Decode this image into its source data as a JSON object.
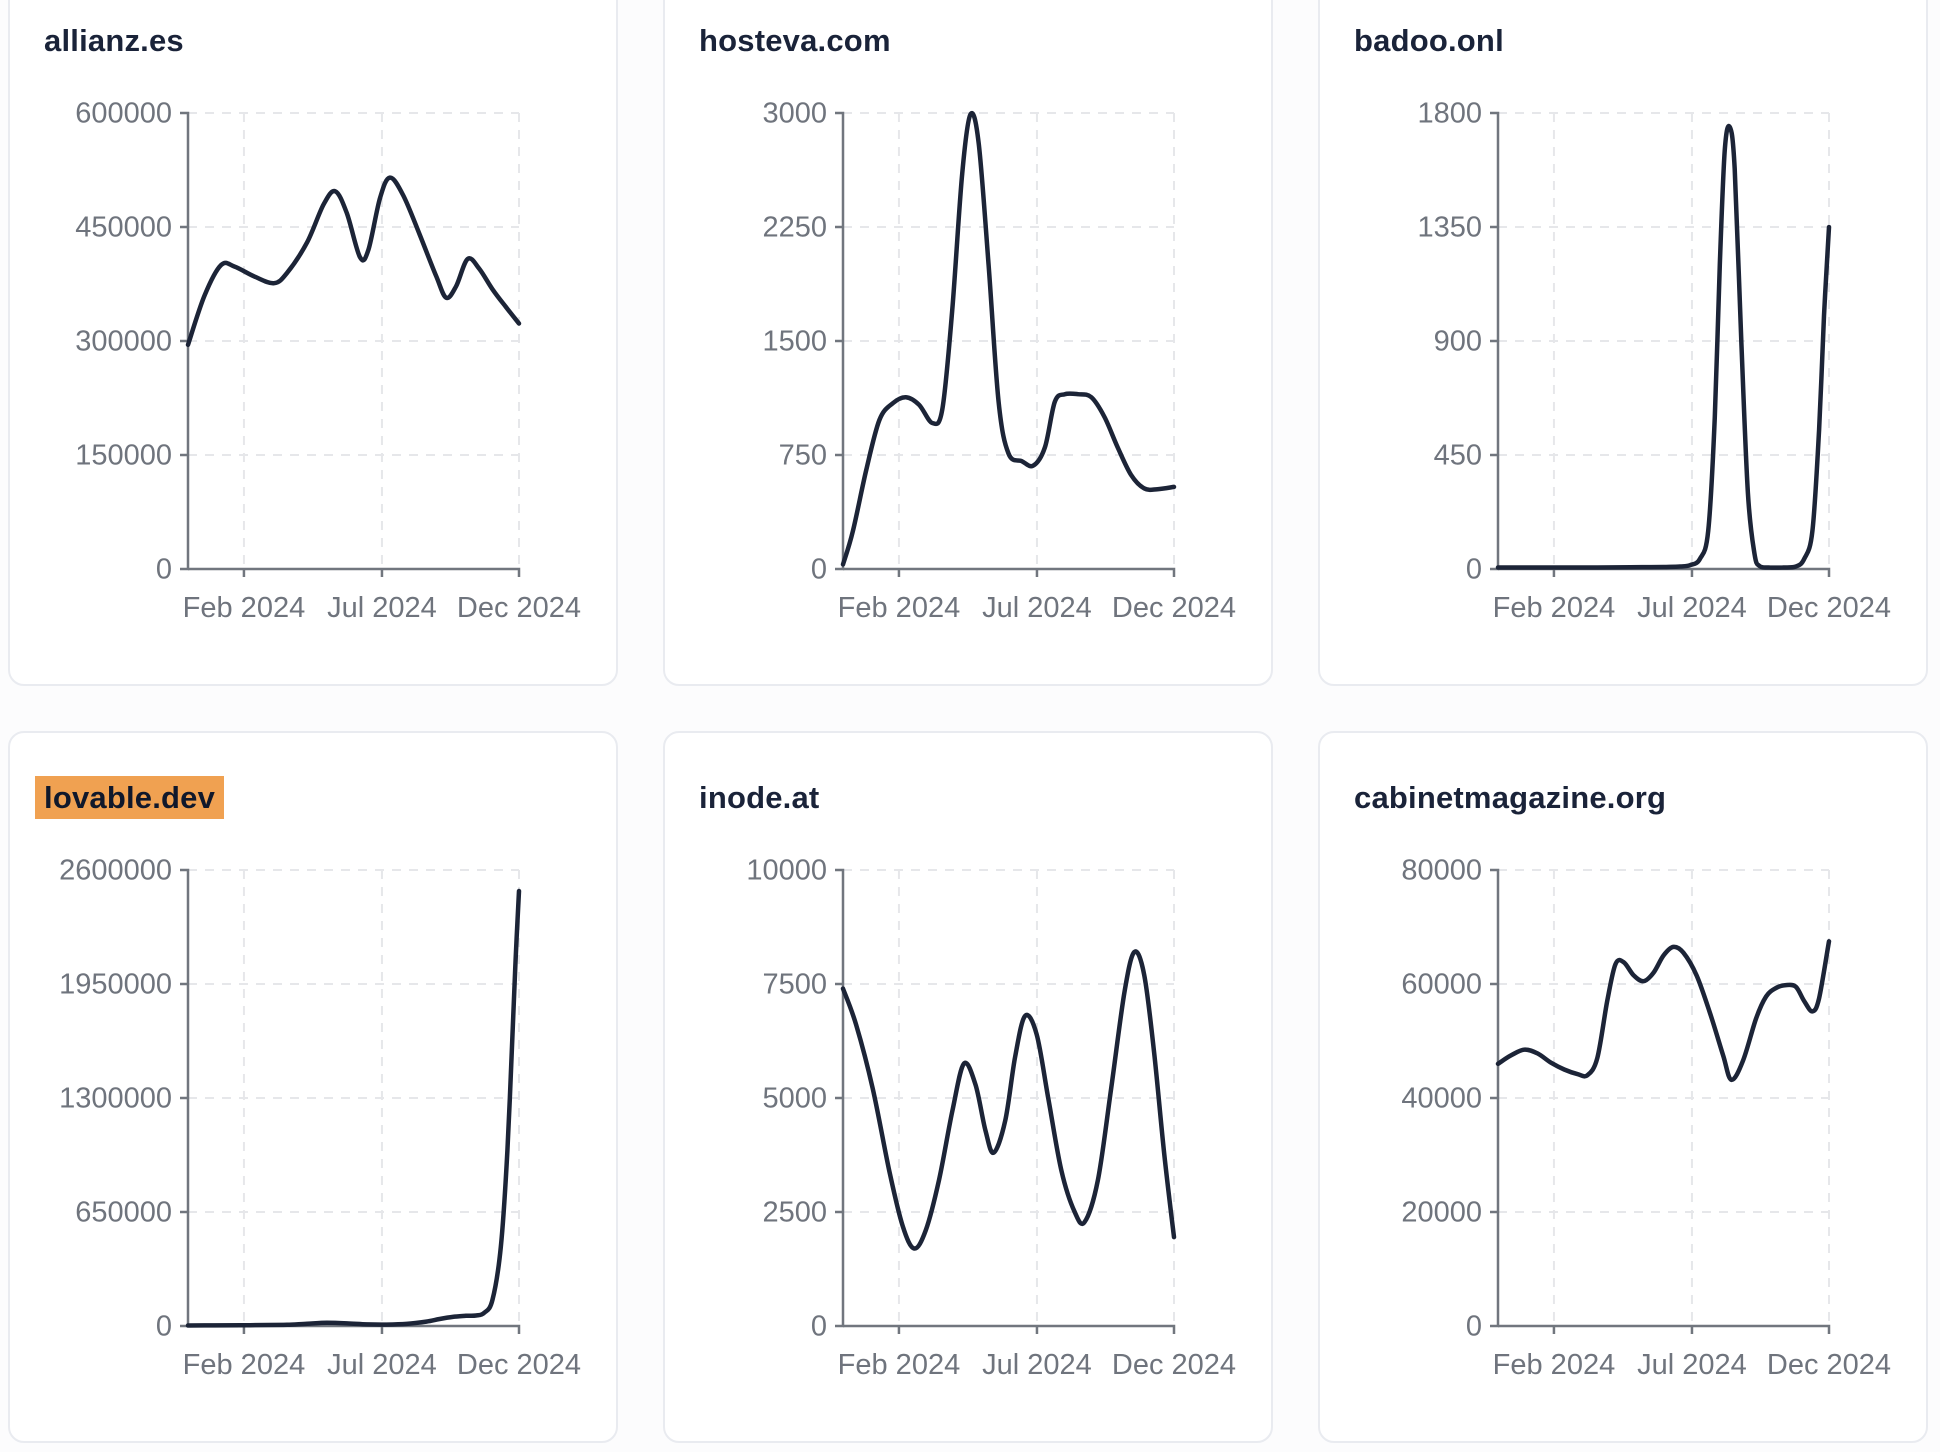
{
  "style": {
    "page_bg": "#fcfcfd",
    "card_bg": "#ffffff",
    "card_border": "#e9ebf0",
    "title_color": "#1a2339",
    "line_color": "#1c2437",
    "tick_label_color": "#6f747d",
    "axis_color": "#71767e",
    "grid_color": "#e6e7ea",
    "highlight_bg": "#f0a151"
  },
  "chart_data": [
    {
      "type": "line",
      "title": "allianz.es",
      "highlighted": false,
      "ylim": [
        0,
        600000
      ],
      "yticks": [
        0,
        150000,
        300000,
        450000,
        600000
      ],
      "x_ticks": [
        {
          "label": "Feb 2024",
          "pos": 0.169
        },
        {
          "label": "Jul 2024",
          "pos": 0.586
        },
        {
          "label": "Dec 2024",
          "pos": 1
        }
      ],
      "points": [
        [
          0,
          295000
        ],
        [
          0.05,
          360000
        ],
        [
          0.1,
          400000
        ],
        [
          0.14,
          398000
        ],
        [
          0.2,
          385000
        ],
        [
          0.26,
          376000
        ],
        [
          0.3,
          390000
        ],
        [
          0.36,
          430000
        ],
        [
          0.41,
          480000
        ],
        [
          0.445,
          497000
        ],
        [
          0.48,
          468000
        ],
        [
          0.52,
          410000
        ],
        [
          0.545,
          420000
        ],
        [
          0.58,
          488000
        ],
        [
          0.61,
          515000
        ],
        [
          0.65,
          492000
        ],
        [
          0.7,
          440000
        ],
        [
          0.75,
          385000
        ],
        [
          0.78,
          357000
        ],
        [
          0.81,
          372000
        ],
        [
          0.845,
          408000
        ],
        [
          0.88,
          395000
        ],
        [
          0.92,
          368000
        ],
        [
          0.96,
          345000
        ],
        [
          1,
          323000
        ]
      ]
    },
    {
      "type": "line",
      "title": "hosteva.com",
      "highlighted": false,
      "ylim": [
        0,
        3000
      ],
      "yticks": [
        0,
        750,
        1500,
        2250,
        3000
      ],
      "x_ticks": [
        {
          "label": "Feb 2024",
          "pos": 0.169
        },
        {
          "label": "Jul 2024",
          "pos": 0.586
        },
        {
          "label": "Dec 2024",
          "pos": 1
        }
      ],
      "points": [
        [
          0,
          30
        ],
        [
          0.03,
          250
        ],
        [
          0.07,
          650
        ],
        [
          0.11,
          980
        ],
        [
          0.15,
          1090
        ],
        [
          0.19,
          1130
        ],
        [
          0.23,
          1080
        ],
        [
          0.27,
          960
        ],
        [
          0.3,
          1050
        ],
        [
          0.33,
          1700
        ],
        [
          0.36,
          2600
        ],
        [
          0.385,
          2990
        ],
        [
          0.41,
          2800
        ],
        [
          0.44,
          2000
        ],
        [
          0.47,
          1100
        ],
        [
          0.5,
          760
        ],
        [
          0.54,
          710
        ],
        [
          0.575,
          680
        ],
        [
          0.61,
          800
        ],
        [
          0.64,
          1100
        ],
        [
          0.67,
          1150
        ],
        [
          0.71,
          1150
        ],
        [
          0.75,
          1130
        ],
        [
          0.79,
          1000
        ],
        [
          0.83,
          800
        ],
        [
          0.87,
          620
        ],
        [
          0.91,
          530
        ],
        [
          0.95,
          525
        ],
        [
          1,
          540
        ]
      ]
    },
    {
      "type": "line",
      "title": "badoo.onl",
      "highlighted": false,
      "ylim": [
        0,
        1800
      ],
      "yticks": [
        0,
        450,
        900,
        1350,
        1800
      ],
      "x_ticks": [
        {
          "label": "Feb 2024",
          "pos": 0.169
        },
        {
          "label": "Jul 2024",
          "pos": 0.586
        },
        {
          "label": "Dec 2024",
          "pos": 1
        }
      ],
      "points": [
        [
          0,
          6
        ],
        [
          0.1,
          6
        ],
        [
          0.2,
          6
        ],
        [
          0.3,
          6
        ],
        [
          0.4,
          7
        ],
        [
          0.5,
          8
        ],
        [
          0.55,
          10
        ],
        [
          0.58,
          15
        ],
        [
          0.61,
          40
        ],
        [
          0.635,
          150
        ],
        [
          0.655,
          600
        ],
        [
          0.67,
          1200
        ],
        [
          0.685,
          1650
        ],
        [
          0.7,
          1745
        ],
        [
          0.715,
          1580
        ],
        [
          0.735,
          900
        ],
        [
          0.755,
          300
        ],
        [
          0.775,
          60
        ],
        [
          0.79,
          12
        ],
        [
          0.82,
          6
        ],
        [
          0.86,
          6
        ],
        [
          0.9,
          10
        ],
        [
          0.925,
          40
        ],
        [
          0.95,
          150
        ],
        [
          0.97,
          550
        ],
        [
          0.985,
          1000
        ],
        [
          1,
          1350
        ]
      ]
    },
    {
      "type": "line",
      "title": "lovable.dev",
      "highlighted": true,
      "ylim": [
        0,
        2600000
      ],
      "yticks": [
        0,
        650000,
        1300000,
        1950000,
        2600000
      ],
      "x_ticks": [
        {
          "label": "Feb 2024",
          "pos": 0.169
        },
        {
          "label": "Jul 2024",
          "pos": 0.586
        },
        {
          "label": "Dec 2024",
          "pos": 1
        }
      ],
      "points": [
        [
          0,
          3000
        ],
        [
          0.08,
          3500
        ],
        [
          0.16,
          4200
        ],
        [
          0.24,
          5500
        ],
        [
          0.3,
          7000
        ],
        [
          0.36,
          13000
        ],
        [
          0.42,
          18000
        ],
        [
          0.48,
          15000
        ],
        [
          0.54,
          9000
        ],
        [
          0.6,
          8000
        ],
        [
          0.66,
          12000
        ],
        [
          0.72,
          25000
        ],
        [
          0.76,
          40000
        ],
        [
          0.8,
          52000
        ],
        [
          0.84,
          58000
        ],
        [
          0.87,
          60000
        ],
        [
          0.895,
          75000
        ],
        [
          0.92,
          150000
        ],
        [
          0.945,
          450000
        ],
        [
          0.965,
          1000000
        ],
        [
          0.98,
          1650000
        ],
        [
          0.99,
          2100000
        ],
        [
          1,
          2480000
        ]
      ]
    },
    {
      "type": "line",
      "title": "inode.at",
      "highlighted": false,
      "ylim": [
        0,
        10000
      ],
      "yticks": [
        0,
        2500,
        5000,
        7500,
        10000
      ],
      "x_ticks": [
        {
          "label": "Feb 2024",
          "pos": 0.169
        },
        {
          "label": "Jul 2024",
          "pos": 0.586
        },
        {
          "label": "Dec 2024",
          "pos": 1
        }
      ],
      "points": [
        [
          0,
          7400
        ],
        [
          0.04,
          6600
        ],
        [
          0.09,
          5200
        ],
        [
          0.14,
          3400
        ],
        [
          0.18,
          2200
        ],
        [
          0.215,
          1700
        ],
        [
          0.25,
          2100
        ],
        [
          0.29,
          3200
        ],
        [
          0.33,
          4700
        ],
        [
          0.365,
          5750
        ],
        [
          0.4,
          5300
        ],
        [
          0.43,
          4300
        ],
        [
          0.455,
          3800
        ],
        [
          0.49,
          4500
        ],
        [
          0.52,
          5900
        ],
        [
          0.55,
          6800
        ],
        [
          0.585,
          6400
        ],
        [
          0.62,
          5000
        ],
        [
          0.66,
          3400
        ],
        [
          0.7,
          2500
        ],
        [
          0.73,
          2280
        ],
        [
          0.77,
          3200
        ],
        [
          0.81,
          5200
        ],
        [
          0.85,
          7300
        ],
        [
          0.88,
          8200
        ],
        [
          0.91,
          7700
        ],
        [
          0.94,
          6000
        ],
        [
          0.97,
          3800
        ],
        [
          1,
          1950
        ]
      ]
    },
    {
      "type": "line",
      "title": "cabinetmagazine.org",
      "highlighted": false,
      "ylim": [
        0,
        80000
      ],
      "yticks": [
        0,
        20000,
        40000,
        60000,
        80000
      ],
      "x_ticks": [
        {
          "label": "Feb 2024",
          "pos": 0.169
        },
        {
          "label": "Jul 2024",
          "pos": 0.586
        },
        {
          "label": "Dec 2024",
          "pos": 1
        }
      ],
      "points": [
        [
          0,
          46000
        ],
        [
          0.04,
          47500
        ],
        [
          0.08,
          48500
        ],
        [
          0.12,
          47800
        ],
        [
          0.16,
          46200
        ],
        [
          0.2,
          45000
        ],
        [
          0.24,
          44200
        ],
        [
          0.27,
          44000
        ],
        [
          0.3,
          47000
        ],
        [
          0.33,
          57000
        ],
        [
          0.355,
          63500
        ],
        [
          0.38,
          63800
        ],
        [
          0.41,
          61500
        ],
        [
          0.44,
          60500
        ],
        [
          0.47,
          62000
        ],
        [
          0.5,
          65000
        ],
        [
          0.53,
          66500
        ],
        [
          0.56,
          65500
        ],
        [
          0.6,
          61500
        ],
        [
          0.64,
          55000
        ],
        [
          0.68,
          47500
        ],
        [
          0.705,
          43200
        ],
        [
          0.74,
          46500
        ],
        [
          0.78,
          54000
        ],
        [
          0.81,
          57800
        ],
        [
          0.84,
          59300
        ],
        [
          0.87,
          59800
        ],
        [
          0.9,
          59500
        ],
        [
          0.925,
          57000
        ],
        [
          0.95,
          55200
        ],
        [
          0.97,
          57500
        ],
        [
          1,
          67500
        ]
      ]
    }
  ]
}
